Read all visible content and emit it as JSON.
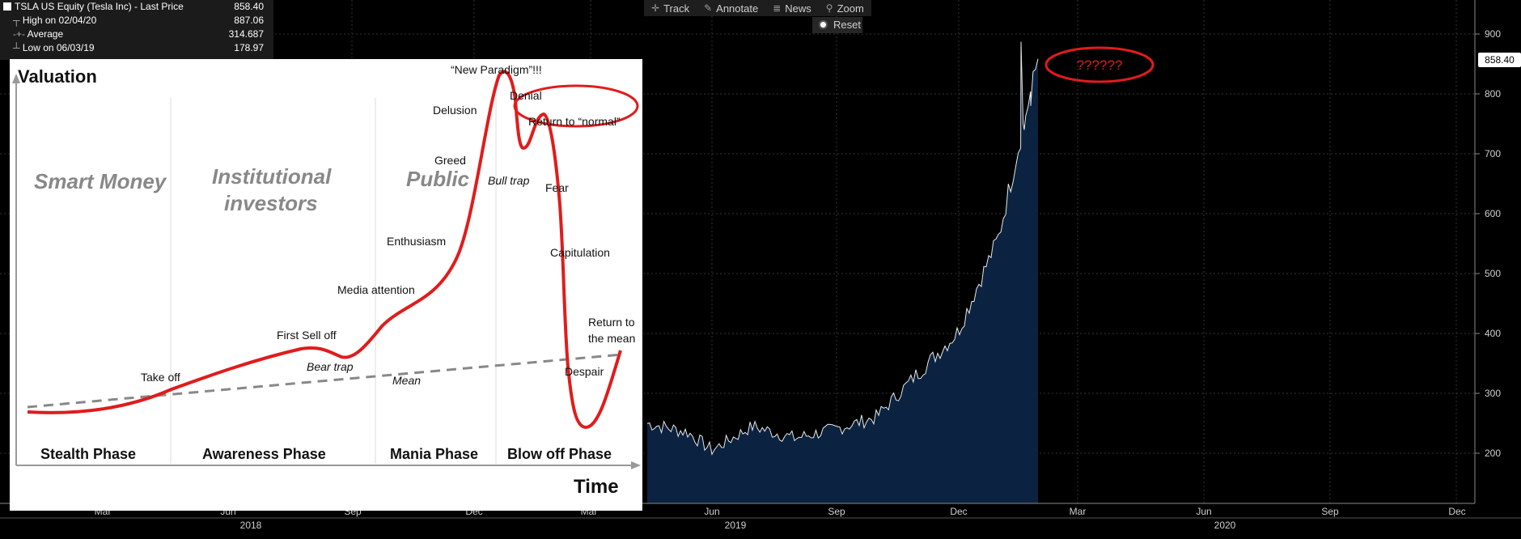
{
  "legend": {
    "title": "TSLA US Equity (Tesla Inc) - Last Price",
    "last_price": "858.40",
    "rows": [
      {
        "label": "High on 02/04/20",
        "value": "887.06"
      },
      {
        "label": "Average",
        "value": "314.687"
      },
      {
        "label": "Low on 06/03/19",
        "value": "178.97"
      }
    ]
  },
  "toolbar": {
    "track": "Track",
    "annotate": "Annotate",
    "news": "News",
    "zoom": "Zoom",
    "reset": "Reset"
  },
  "annotation": "??????",
  "last_price_tag": "858.40",
  "axis": {
    "month_labels_left": [
      "Mar",
      "Jun",
      "Sep",
      "Dec",
      "Mar"
    ],
    "month_labels_right": [
      "Jun",
      "Sep",
      "Dec",
      "Mar",
      "Jun",
      "Sep",
      "Dec"
    ],
    "year_labels": [
      "2018",
      "2019",
      "2020"
    ],
    "y_ticks": [
      "900",
      "800",
      "700",
      "600",
      "500",
      "400",
      "300",
      "200"
    ]
  },
  "diagram": {
    "ylabel": "Valuation",
    "xlabel": "Time",
    "groups": [
      "Smart Money",
      "Institutional",
      "investors",
      "Public"
    ],
    "phases": [
      "Stealth Phase",
      "Awareness Phase",
      "Mania Phase",
      "Blow off Phase"
    ],
    "labels": {
      "take_off": "Take off",
      "first_sell_off": "First Sell off",
      "bear_trap": "Bear trap",
      "mean": "Mean",
      "media_attention": "Media attention",
      "enthusiasm": "Enthusiasm",
      "greed": "Greed",
      "delusion": "Delusion",
      "new_paradigm": "“New Paradigm”!!!",
      "denial": "Denial",
      "return_normal": "Return to “normal”",
      "bull_trap": "Bull trap",
      "fear": "Fear",
      "capitulation": "Capitulation",
      "despair": "Despair",
      "return_mean_1": "Return to",
      "return_mean_2": "the mean"
    }
  },
  "chart_data": {
    "type": "area",
    "title": "TSLA US Equity (Tesla Inc) - Last Price",
    "xlabel": "",
    "ylabel": "",
    "ylim": [
      130,
      920
    ],
    "x": [
      "2019-04",
      "2019-05",
      "2019-06",
      "2019-07",
      "2019-08",
      "2019-09",
      "2019-10",
      "2019-11",
      "2019-12",
      "2020-01",
      "2020-02"
    ],
    "series": [
      {
        "values": [
          250,
          235,
          205,
          245,
          225,
          240,
          260,
          330,
          400,
          560,
          858.4
        ]
      }
    ],
    "high": 887.06,
    "average": 314.687,
    "low": 178.97
  }
}
